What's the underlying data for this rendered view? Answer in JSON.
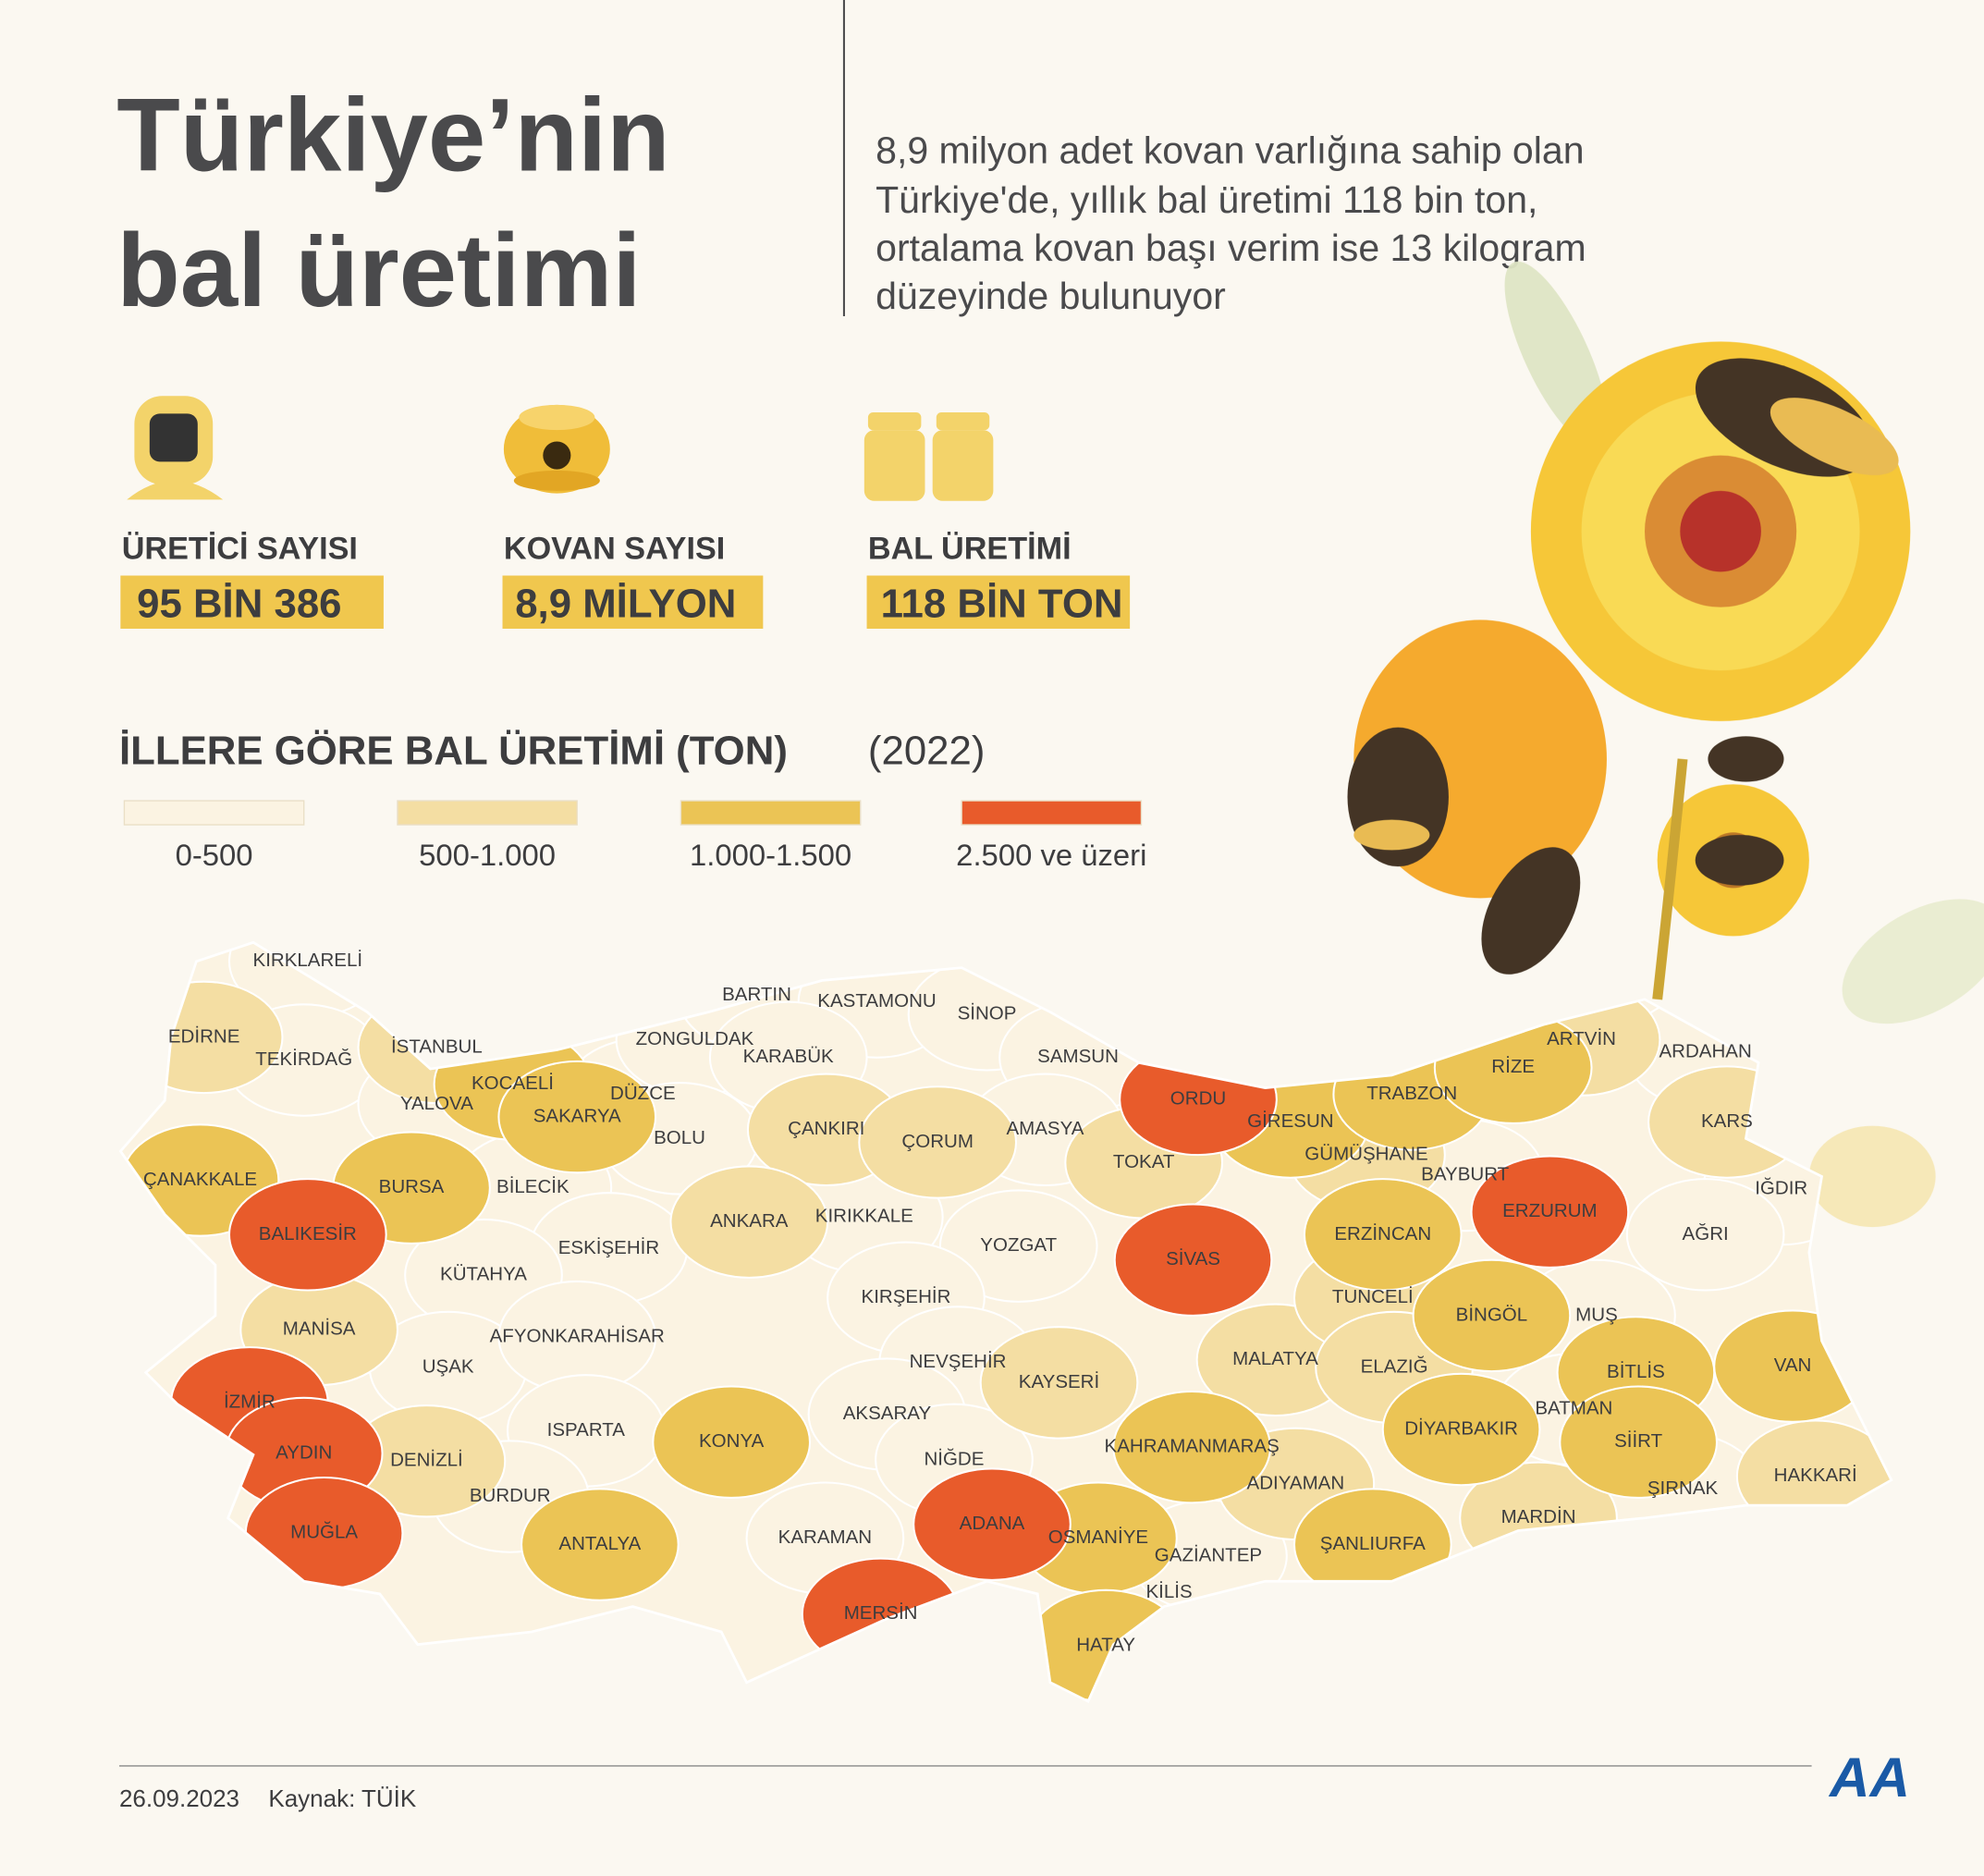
{
  "header": {
    "title": [
      "Türkiye’nin",
      "bal üretimi"
    ],
    "description": [
      "8,9 milyon adet kovan varlığına sahip olan",
      "Türkiye'de, yıllık bal üretimi 118 bin ton,",
      "ortalama kovan başı verim ise 13 kilogram",
      "düzeyinde bulunuyor"
    ]
  },
  "stats": [
    {
      "label": "ÜRETİCİ SAYISI",
      "value": "95 BİN 386"
    },
    {
      "label": "KOVAN SAYISI",
      "value": "8,9 MİLYON"
    },
    {
      "label": "BAL ÜRETİMİ",
      "value": "118 BİN TON"
    }
  ],
  "map": {
    "title": "İLLERE GÖRE BAL ÜRETİMİ (TON)",
    "year": "(2022)",
    "legend": [
      {
        "label": "0-500",
        "color": "#fbf3e2"
      },
      {
        "label": "500-1.000",
        "color": "#f4dea3"
      },
      {
        "label": "1.000-1.500",
        "color": "#ebc455"
      },
      {
        "label": "2.500 ve üzeri",
        "color": "#e85b2b"
      }
    ],
    "provinces": [
      {
        "name": "KIRKLARELİ",
        "color": "#fbf3e2"
      },
      {
        "name": "EDİRNE",
        "color": "#f4dea3"
      },
      {
        "name": "TEKİRDAĞ",
        "color": "#fbf3e2"
      },
      {
        "name": "İSTANBUL",
        "color": "#f4dea3"
      },
      {
        "name": "ÇANAKKALE",
        "color": "#ebc455"
      },
      {
        "name": "BALIKESİR",
        "color": "#e85b2b"
      },
      {
        "name": "BURSA",
        "color": "#ebc455"
      },
      {
        "name": "YALOVA",
        "color": "#fbf3e2"
      },
      {
        "name": "KOCAELİ",
        "color": "#ebc455"
      },
      {
        "name": "SAKARYA",
        "color": "#ebc455"
      },
      {
        "name": "DÜZCE",
        "color": "#fbf3e2"
      },
      {
        "name": "ZONGULDAK",
        "color": "#fbf3e2"
      },
      {
        "name": "BARTIN",
        "color": "#fbf3e2"
      },
      {
        "name": "KASTAMONU",
        "color": "#fbf3e2"
      },
      {
        "name": "SİNOP",
        "color": "#fbf3e2"
      },
      {
        "name": "KARABÜK",
        "color": "#fbf3e2"
      },
      {
        "name": "SAMSUN",
        "color": "#fbf3e2"
      },
      {
        "name": "BOLU",
        "color": "#fbf3e2"
      },
      {
        "name": "ÇANKIRI",
        "color": "#f4dea3"
      },
      {
        "name": "ÇORUM",
        "color": "#f4dea3"
      },
      {
        "name": "AMASYA",
        "color": "#fbf3e2"
      },
      {
        "name": "TOKAT",
        "color": "#f4dea3"
      },
      {
        "name": "ORDU",
        "color": "#e85b2b"
      },
      {
        "name": "GİRESUN",
        "color": "#ebc455"
      },
      {
        "name": "TRABZON",
        "color": "#ebc455"
      },
      {
        "name": "RİZE",
        "color": "#ebc455"
      },
      {
        "name": "ARTVİN",
        "color": "#f4dea3"
      },
      {
        "name": "ARDAHAN",
        "color": "#fbf3e2"
      },
      {
        "name": "KARS",
        "color": "#f4dea3"
      },
      {
        "name": "IĞDIR",
        "color": "#fbf3e2"
      },
      {
        "name": "AĞRI",
        "color": "#fbf3e2"
      },
      {
        "name": "ERZURUM",
        "color": "#e85b2b"
      },
      {
        "name": "BAYBURT",
        "color": "#fbf3e2"
      },
      {
        "name": "GÜMÜŞHANE",
        "color": "#f4dea3"
      },
      {
        "name": "ERZİNCAN",
        "color": "#ebc455"
      },
      {
        "name": "SİVAS",
        "color": "#e85b2b"
      },
      {
        "name": "YOZGAT",
        "color": "#fbf3e2"
      },
      {
        "name": "KIRIKKALE",
        "color": "#fbf3e2"
      },
      {
        "name": "ANKARA",
        "color": "#f4dea3"
      },
      {
        "name": "BİLECİK",
        "color": "#fbf3e2"
      },
      {
        "name": "ESKİŞEHİR",
        "color": "#fbf3e2"
      },
      {
        "name": "KÜTAHYA",
        "color": "#fbf3e2"
      },
      {
        "name": "MANİSA",
        "color": "#f4dea3"
      },
      {
        "name": "UŞAK",
        "color": "#fbf3e2"
      },
      {
        "name": "AFYONKARAHİSAR",
        "color": "#fbf3e2"
      },
      {
        "name": "KIRŞEHİR",
        "color": "#fbf3e2"
      },
      {
        "name": "NEVŞEHİR",
        "color": "#fbf3e2"
      },
      {
        "name": "KAYSERİ",
        "color": "#f4dea3"
      },
      {
        "name": "AKSARAY",
        "color": "#fbf3e2"
      },
      {
        "name": "NİĞDE",
        "color": "#fbf3e2"
      },
      {
        "name": "KONYA",
        "color": "#ebc455"
      },
      {
        "name": "ISPARTA",
        "color": "#fbf3e2"
      },
      {
        "name": "İZMİR",
        "color": "#e85b2b"
      },
      {
        "name": "AYDIN",
        "color": "#e85b2b"
      },
      {
        "name": "DENİZLİ",
        "color": "#f4dea3"
      },
      {
        "name": "BURDUR",
        "color": "#fbf3e2"
      },
      {
        "name": "MUĞLA",
        "color": "#e85b2b"
      },
      {
        "name": "ANTALYA",
        "color": "#ebc455"
      },
      {
        "name": "KARAMAN",
        "color": "#fbf3e2"
      },
      {
        "name": "MERSİN",
        "color": "#e85b2b"
      },
      {
        "name": "ADANA",
        "color": "#e85b2b"
      },
      {
        "name": "OSMANİYE",
        "color": "#ebc455"
      },
      {
        "name": "HATAY",
        "color": "#ebc455"
      },
      {
        "name": "KİLİS",
        "color": "#fbf3e2"
      },
      {
        "name": "GAZİANTEP",
        "color": "#fbf3e2"
      },
      {
        "name": "KAHRAMANMARAŞ",
        "color": "#ebc455"
      },
      {
        "name": "ADIYAMAN",
        "color": "#f4dea3"
      },
      {
        "name": "MALATYA",
        "color": "#f4dea3"
      },
      {
        "name": "TUNCELİ",
        "color": "#f4dea3"
      },
      {
        "name": "ELAZIĞ",
        "color": "#f4dea3"
      },
      {
        "name": "BİNGÖL",
        "color": "#ebc455"
      },
      {
        "name": "MUŞ",
        "color": "#fbf3e2"
      },
      {
        "name": "BİTLİS",
        "color": "#ebc455"
      },
      {
        "name": "VAN",
        "color": "#ebc455"
      },
      {
        "name": "BATMAN",
        "color": "#fbf3e2"
      },
      {
        "name": "SİİRT",
        "color": "#ebc455"
      },
      {
        "name": "DİYARBAKIR",
        "color": "#ebc455"
      },
      {
        "name": "ŞANLIURFA",
        "color": "#ebc455"
      },
      {
        "name": "MARDİN",
        "color": "#f4dea3"
      },
      {
        "name": "ŞIRNAK",
        "color": "#fbf3e2"
      },
      {
        "name": "HAKKARİ",
        "color": "#f4dea3"
      }
    ]
  },
  "footer": {
    "date": "26.09.2023",
    "source": "Kaynak: TÜİK",
    "logo": "AA"
  }
}
